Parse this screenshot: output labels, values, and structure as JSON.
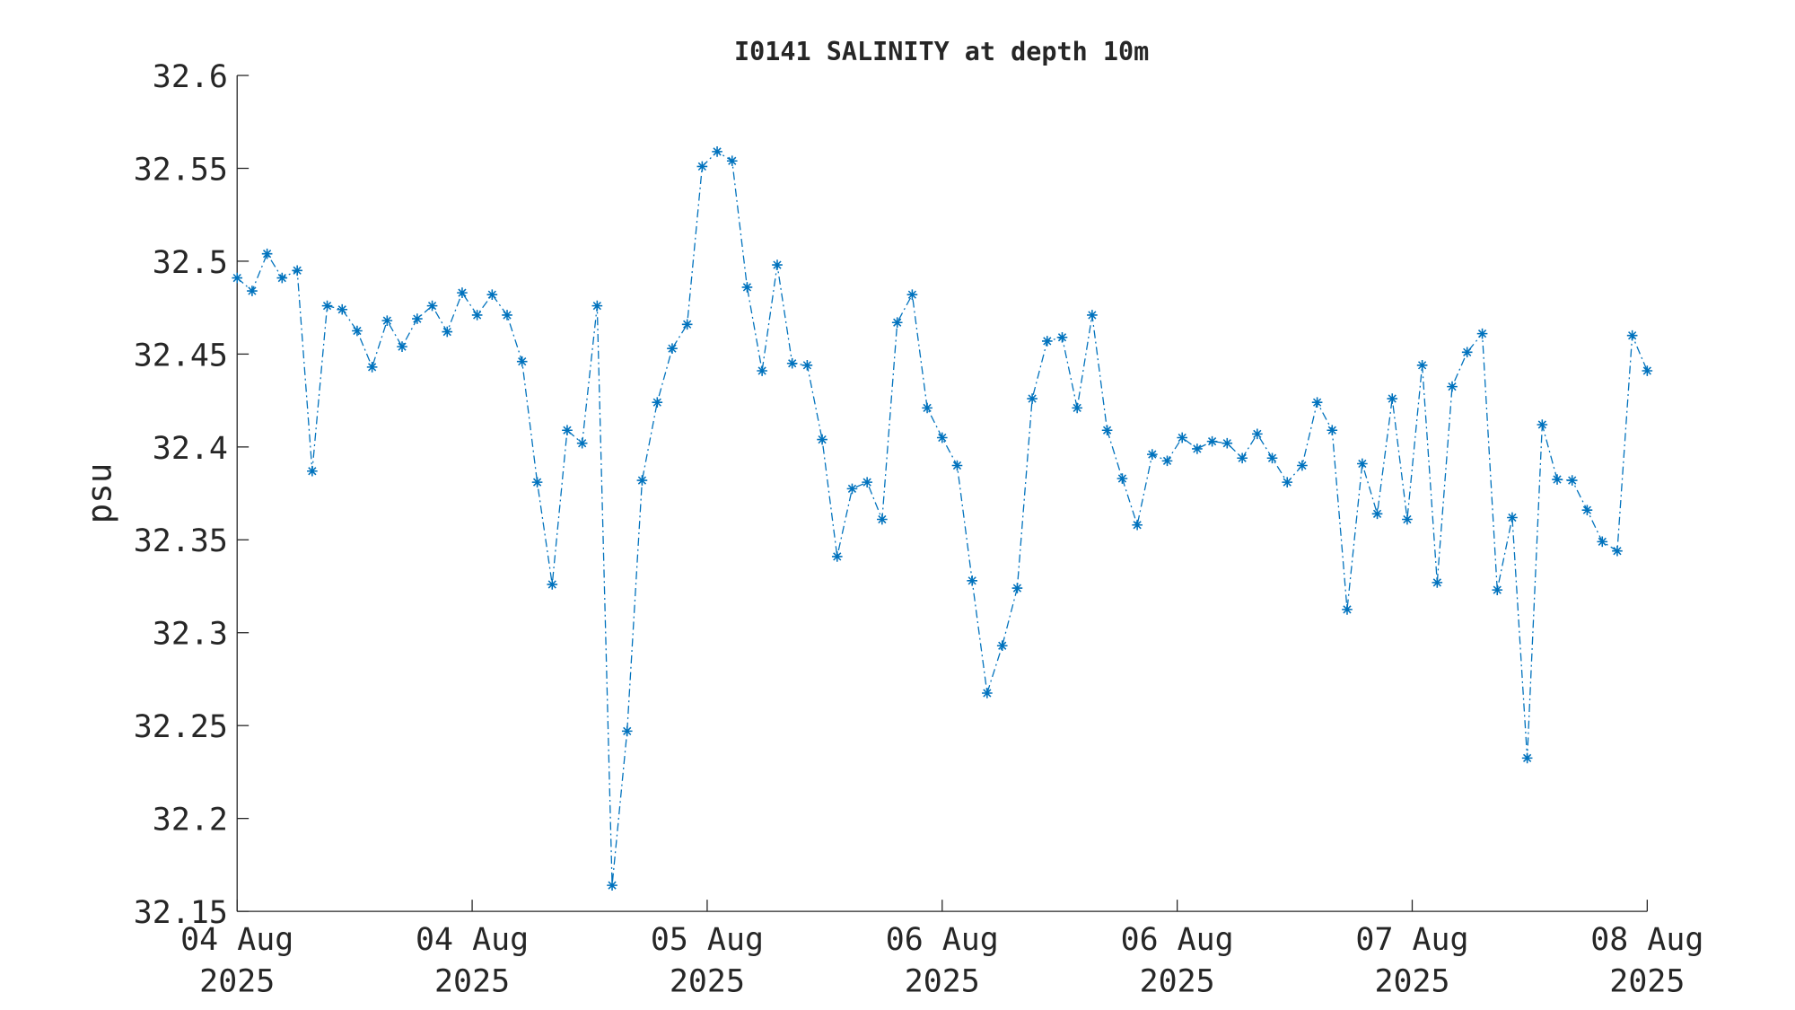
{
  "chart_data": {
    "type": "line",
    "title": "I0141 SALINITY at depth 10m",
    "ylabel": "psu",
    "color": "#0072bd",
    "line_style": "dash-dot",
    "marker": "asterisk",
    "x": [
      0,
      1.02,
      2.04,
      3.06,
      4.09,
      5.11,
      6.13,
      7.15,
      8.17,
      9.19,
      10.21,
      11.23,
      12.26,
      13.28,
      14.3,
      15.32,
      16.34,
      17.36,
      18.38,
      19.4,
      20.43,
      21.45,
      22.47,
      23.49,
      24.51,
      25.53,
      26.55,
      27.57,
      28.6,
      29.62,
      30.64,
      31.66,
      32.68,
      33.7,
      34.72,
      35.74,
      36.77,
      37.79,
      38.81,
      39.83,
      40.85,
      41.87,
      42.89,
      43.91,
      44.94,
      45.96,
      46.98,
      48,
      49.02,
      50.04,
      51.06,
      52.09,
      53.11,
      54.13,
      55.15,
      56.17,
      57.19,
      58.21,
      59.23,
      60.26,
      61.28,
      62.3,
      63.32,
      64.34,
      65.36,
      66.38,
      67.4,
      68.43,
      69.45,
      70.47,
      71.49,
      72.51,
      73.53,
      74.55,
      75.57,
      76.6,
      77.62,
      78.64,
      79.66,
      80.68,
      81.7,
      82.72,
      83.74,
      84.77,
      85.79,
      86.81,
      87.83,
      88.85,
      89.87,
      90.89,
      91.91,
      92.94,
      93.96,
      94.98,
      96
    ],
    "values": [
      32.491,
      32.484,
      32.504,
      32.491,
      32.495,
      32.387,
      32.476,
      32.474,
      32.4625,
      32.443,
      32.468,
      32.454,
      32.469,
      32.476,
      32.462,
      32.483,
      32.471,
      32.482,
      32.471,
      32.446,
      32.381,
      32.326,
      32.409,
      32.402,
      32.476,
      32.164,
      32.247,
      32.382,
      32.424,
      32.453,
      32.466,
      32.551,
      32.559,
      32.554,
      32.486,
      32.441,
      32.498,
      32.445,
      32.444,
      32.404,
      32.341,
      32.3775,
      32.381,
      32.361,
      32.467,
      32.482,
      32.421,
      32.405,
      32.39,
      32.328,
      32.2675,
      32.293,
      32.324,
      32.426,
      32.457,
      32.459,
      32.421,
      32.471,
      32.409,
      32.383,
      32.358,
      32.396,
      32.3925,
      32.405,
      32.399,
      32.403,
      32.402,
      32.394,
      32.407,
      32.394,
      32.381,
      32.39,
      32.424,
      32.409,
      32.3125,
      32.391,
      32.364,
      32.426,
      32.361,
      32.444,
      32.327,
      32.4325,
      32.451,
      32.461,
      32.323,
      32.362,
      32.2325,
      32.412,
      32.3825,
      32.382,
      32.366,
      32.349,
      32.344,
      32.46,
      32.441
    ],
    "xlim": [
      0,
      96
    ],
    "xticks": [
      {
        "value": 0,
        "label": [
          "04 Aug",
          "2025"
        ]
      },
      {
        "value": 16,
        "label": [
          "04 Aug",
          "2025"
        ]
      },
      {
        "value": 32,
        "label": [
          "05 Aug",
          "2025"
        ]
      },
      {
        "value": 48,
        "label": [
          "06 Aug",
          "2025"
        ]
      },
      {
        "value": 64,
        "label": [
          "06 Aug",
          "2025"
        ]
      },
      {
        "value": 80,
        "label": [
          "07 Aug",
          "2025"
        ]
      },
      {
        "value": 96,
        "label": [
          "08 Aug",
          "2025"
        ]
      }
    ],
    "ylim": [
      32.15,
      32.6
    ],
    "yticks": [
      32.15,
      32.2,
      32.25,
      32.3,
      32.35,
      32.4,
      32.45,
      32.5,
      32.55,
      32.6
    ],
    "grid": false
  }
}
